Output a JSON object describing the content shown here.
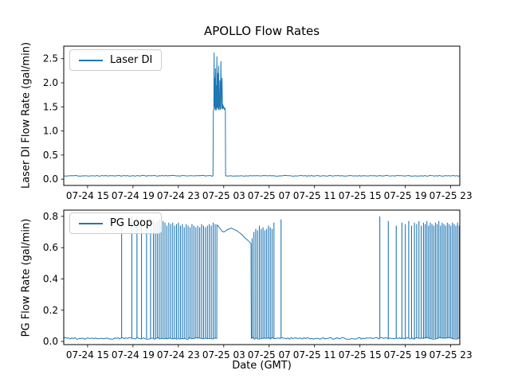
{
  "title": "APOLLO Flow Rates",
  "xlabel": "Date (GMT)",
  "line_color": "#1f77b4",
  "background_color": "#ffffff",
  "chart_data": [
    {
      "type": "line",
      "name": "laser_di",
      "ylabel": "Laser DI Flow Rate (gal/min)",
      "legend": "Laser DI",
      "legend_position": "upper left",
      "grid": false,
      "color": "#1f77b4",
      "xlim": [
        12.9,
        47.8
      ],
      "ylim": [
        -0.13,
        2.76
      ],
      "yticks": [
        0.0,
        0.5,
        1.0,
        1.5,
        2.0,
        2.5
      ],
      "ytick_labels": [
        "0.0",
        "0.5",
        "1.0",
        "1.5",
        "2.0",
        "2.5"
      ],
      "xtick_values": [
        15,
        19,
        23,
        27,
        31,
        35,
        39,
        43,
        47
      ],
      "xtick_labels": [
        "07-24 15",
        "07-24 19",
        "07-24 23",
        "07-25 03",
        "07-25 07",
        "07-25 11",
        "07-25 15",
        "07-25 19",
        "07-25 23"
      ],
      "baseline": 0.07,
      "noise_amp": 0.008,
      "points": [
        [
          12.9,
          0.07
        ],
        [
          26.05,
          0.07
        ],
        [
          26.08,
          1.4
        ],
        [
          26.12,
          1.45
        ],
        [
          26.15,
          2.63
        ],
        [
          26.17,
          1.5
        ],
        [
          26.2,
          2.1
        ],
        [
          26.23,
          1.45
        ],
        [
          26.27,
          2.3
        ],
        [
          26.3,
          1.42
        ],
        [
          26.33,
          1.95
        ],
        [
          26.36,
          1.44
        ],
        [
          26.4,
          2.55
        ],
        [
          26.43,
          1.48
        ],
        [
          26.47,
          2.2
        ],
        [
          26.5,
          1.45
        ],
        [
          26.55,
          2.35
        ],
        [
          26.58,
          1.43
        ],
        [
          26.62,
          1.5
        ],
        [
          26.66,
          2.05
        ],
        [
          26.7,
          1.44
        ],
        [
          26.75,
          2.45
        ],
        [
          26.8,
          1.46
        ],
        [
          26.85,
          2.1
        ],
        [
          26.88,
          1.45
        ],
        [
          26.92,
          1.55
        ],
        [
          26.96,
          1.48
        ],
        [
          27.0,
          1.5
        ],
        [
          27.05,
          1.45
        ],
        [
          27.1,
          1.47
        ],
        [
          27.14,
          1.44
        ],
        [
          27.16,
          0.07
        ],
        [
          47.8,
          0.07
        ]
      ],
      "spikes": []
    },
    {
      "type": "line",
      "name": "pg_loop",
      "ylabel": "PG Flow Rate (gal/min)",
      "legend": "PG Loop",
      "legend_position": "upper left",
      "grid": false,
      "color": "#1f77b4",
      "xlim": [
        12.9,
        47.8
      ],
      "ylim": [
        -0.02,
        0.84
      ],
      "yticks": [
        0.0,
        0.2,
        0.4,
        0.6,
        0.8
      ],
      "ytick_labels": [
        "0.0",
        "0.2",
        "0.4",
        "0.6",
        "0.8"
      ],
      "xtick_values": [
        15,
        19,
        23,
        27,
        31,
        35,
        39,
        43,
        47
      ],
      "xtick_labels": [
        "07-24 15",
        "07-24 19",
        "07-24 23",
        "07-25 03",
        "07-25 07",
        "07-25 11",
        "07-25 15",
        "07-25 19",
        "07-25 23"
      ],
      "baseline": 0.02,
      "noise_amp": 0.006,
      "points": [
        [
          12.9,
          0.02
        ],
        [
          26.38,
          0.02
        ],
        [
          26.4,
          0.745
        ],
        [
          26.55,
          0.735
        ],
        [
          26.7,
          0.72
        ],
        [
          26.85,
          0.705
        ],
        [
          27.0,
          0.7
        ],
        [
          27.15,
          0.705
        ],
        [
          27.3,
          0.715
        ],
        [
          27.5,
          0.72
        ],
        [
          27.65,
          0.725
        ],
        [
          27.8,
          0.72
        ],
        [
          27.95,
          0.715
        ],
        [
          28.1,
          0.71
        ],
        [
          28.3,
          0.7
        ],
        [
          28.5,
          0.69
        ],
        [
          28.7,
          0.675
        ],
        [
          28.9,
          0.66
        ],
        [
          29.1,
          0.648
        ],
        [
          29.25,
          0.638
        ],
        [
          29.4,
          0.625
        ],
        [
          29.43,
          0.02
        ],
        [
          47.8,
          0.02
        ]
      ],
      "spikes": [
        [
          18.0,
          0.78
        ],
        [
          18.9,
          0.8
        ],
        [
          19.35,
          0.79
        ],
        [
          19.75,
          0.78
        ],
        [
          20.2,
          0.77
        ],
        [
          20.55,
          0.79
        ],
        [
          20.8,
          0.78
        ],
        [
          20.97,
          0.76
        ],
        [
          21.14,
          0.77
        ],
        [
          21.31,
          0.78
        ],
        [
          21.48,
          0.75
        ],
        [
          21.65,
          0.77
        ],
        [
          21.82,
          0.76
        ],
        [
          21.99,
          0.74
        ],
        [
          22.16,
          0.76
        ],
        [
          22.33,
          0.75
        ],
        [
          22.5,
          0.76
        ],
        [
          22.67,
          0.74
        ],
        [
          22.84,
          0.75
        ],
        [
          23.01,
          0.76
        ],
        [
          23.18,
          0.74
        ],
        [
          23.35,
          0.75
        ],
        [
          23.52,
          0.73
        ],
        [
          23.69,
          0.75
        ],
        [
          23.86,
          0.74
        ],
        [
          24.03,
          0.73
        ],
        [
          24.2,
          0.75
        ],
        [
          24.37,
          0.74
        ],
        [
          24.54,
          0.73
        ],
        [
          24.71,
          0.74
        ],
        [
          24.88,
          0.73
        ],
        [
          25.05,
          0.75
        ],
        [
          25.22,
          0.74
        ],
        [
          25.39,
          0.73
        ],
        [
          25.56,
          0.74
        ],
        [
          25.73,
          0.75
        ],
        [
          25.9,
          0.74
        ],
        [
          26.07,
          0.76
        ],
        [
          26.24,
          0.75
        ],
        [
          29.5,
          0.66
        ],
        [
          29.66,
          0.7
        ],
        [
          29.82,
          0.72
        ],
        [
          29.98,
          0.71
        ],
        [
          30.14,
          0.74
        ],
        [
          30.3,
          0.72
        ],
        [
          30.46,
          0.73
        ],
        [
          30.62,
          0.71
        ],
        [
          30.78,
          0.72
        ],
        [
          30.94,
          0.74
        ],
        [
          31.1,
          0.73
        ],
        [
          31.26,
          0.72
        ],
        [
          31.42,
          0.76
        ],
        [
          32.05,
          0.78
        ],
        [
          40.75,
          0.8
        ],
        [
          41.5,
          0.77
        ],
        [
          42.2,
          0.74
        ],
        [
          42.7,
          0.76
        ],
        [
          43.0,
          0.75
        ],
        [
          43.3,
          0.77
        ],
        [
          43.55,
          0.74
        ],
        [
          43.8,
          0.76
        ],
        [
          44.0,
          0.75
        ],
        [
          44.2,
          0.77
        ],
        [
          44.4,
          0.74
        ],
        [
          44.6,
          0.76
        ],
        [
          44.75,
          0.75
        ],
        [
          44.9,
          0.77
        ],
        [
          45.05,
          0.74
        ],
        [
          45.2,
          0.76
        ],
        [
          45.35,
          0.75
        ],
        [
          45.5,
          0.74
        ],
        [
          45.65,
          0.76
        ],
        [
          45.8,
          0.75
        ],
        [
          45.95,
          0.77
        ],
        [
          46.1,
          0.74
        ],
        [
          46.25,
          0.76
        ],
        [
          46.4,
          0.75
        ],
        [
          46.55,
          0.74
        ],
        [
          46.7,
          0.76
        ],
        [
          46.85,
          0.75
        ],
        [
          47.0,
          0.74
        ],
        [
          47.15,
          0.76
        ],
        [
          47.3,
          0.75
        ],
        [
          47.45,
          0.74
        ],
        [
          47.6,
          0.76
        ],
        [
          47.75,
          0.74
        ]
      ]
    }
  ]
}
